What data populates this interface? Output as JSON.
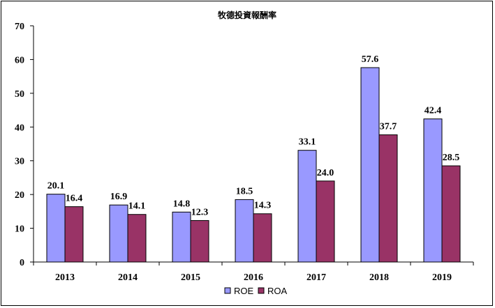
{
  "chart_data": {
    "type": "bar",
    "title": "牧德投資報酬率",
    "categories": [
      "2013",
      "2014",
      "2015",
      "2016",
      "2017",
      "2018",
      "2019"
    ],
    "series": [
      {
        "name": "ROE",
        "color": "#9999ff",
        "values": [
          20.1,
          16.9,
          14.8,
          18.5,
          33.1,
          57.6,
          42.4
        ]
      },
      {
        "name": "ROA",
        "color": "#993366",
        "values": [
          16.4,
          14.1,
          12.3,
          14.3,
          24.0,
          37.7,
          28.5
        ]
      }
    ],
    "ylim": [
      0,
      70
    ],
    "yticks": [
      0,
      10,
      20,
      30,
      40,
      50,
      60,
      70
    ],
    "grid": false,
    "legend_position": "bottom-center",
    "xlabel": "",
    "ylabel": ""
  }
}
